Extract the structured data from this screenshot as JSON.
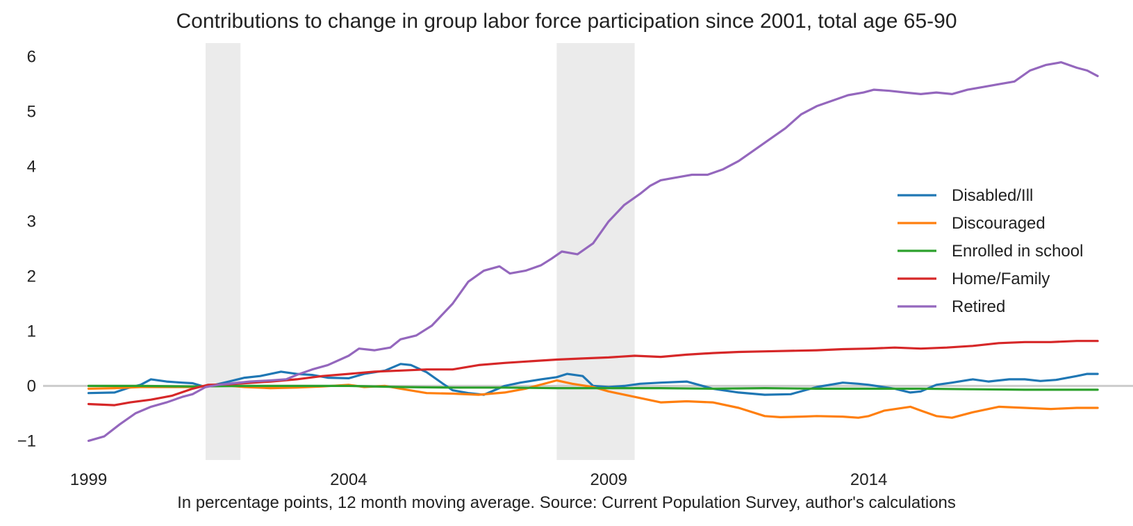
{
  "chart_data": {
    "type": "line",
    "title": "Contributions to change in group labor force participation since 2001, total age 65-90",
    "caption": "In percentage points, 12 month moving average. Source: Current Population Survey, author's calculations",
    "xlabel": "",
    "ylabel": "",
    "xlim": [
      1998.9,
      2018.8
    ],
    "ylim": [
      -1.35,
      6.25
    ],
    "x_ticks": [
      1999,
      2004,
      2009,
      2014
    ],
    "x_tick_labels": [
      "1999",
      "2004",
      "2009",
      "2014"
    ],
    "y_ticks": [
      -1,
      0,
      1,
      2,
      3,
      4,
      5,
      6
    ],
    "y_tick_labels": [
      "−1",
      "0",
      "1",
      "2",
      "3",
      "4",
      "5",
      "6"
    ],
    "grid": false,
    "zero_line": true,
    "legend_position": "center-right",
    "recessions": [
      {
        "start": 2001.25,
        "end": 2001.92
      },
      {
        "start": 2008.0,
        "end": 2009.5
      }
    ],
    "series": [
      {
        "name": "Disabled/Ill",
        "color": "#1f77b4",
        "points": [
          [
            1999.0,
            -0.13
          ],
          [
            1999.5,
            -0.12
          ],
          [
            1999.75,
            -0.04
          ],
          [
            2000.0,
            0.02
          ],
          [
            2000.2,
            0.12
          ],
          [
            2000.5,
            0.08
          ],
          [
            2000.8,
            0.06
          ],
          [
            2001.0,
            0.05
          ],
          [
            2001.25,
            -0.02
          ],
          [
            2001.7,
            0.08
          ],
          [
            2002.0,
            0.15
          ],
          [
            2002.3,
            0.18
          ],
          [
            2002.7,
            0.26
          ],
          [
            2003.0,
            0.22
          ],
          [
            2003.3,
            0.2
          ],
          [
            2003.6,
            0.15
          ],
          [
            2004.0,
            0.14
          ],
          [
            2004.3,
            0.22
          ],
          [
            2004.7,
            0.28
          ],
          [
            2005.0,
            0.4
          ],
          [
            2005.2,
            0.38
          ],
          [
            2005.5,
            0.25
          ],
          [
            2005.8,
            0.05
          ],
          [
            2006.0,
            -0.08
          ],
          [
            2006.3,
            -0.13
          ],
          [
            2006.6,
            -0.16
          ],
          [
            2007.0,
            0.0
          ],
          [
            2007.3,
            0.06
          ],
          [
            2007.7,
            0.12
          ],
          [
            2008.0,
            0.16
          ],
          [
            2008.2,
            0.22
          ],
          [
            2008.5,
            0.18
          ],
          [
            2008.7,
            0.0
          ],
          [
            2009.0,
            -0.02
          ],
          [
            2009.3,
            0.0
          ],
          [
            2009.6,
            0.04
          ],
          [
            2010.0,
            0.06
          ],
          [
            2010.5,
            0.08
          ],
          [
            2011.0,
            -0.05
          ],
          [
            2011.5,
            -0.12
          ],
          [
            2012.0,
            -0.16
          ],
          [
            2012.5,
            -0.15
          ],
          [
            2013.0,
            -0.02
          ],
          [
            2013.5,
            0.06
          ],
          [
            2013.8,
            0.04
          ],
          [
            2014.0,
            0.02
          ],
          [
            2014.5,
            -0.05
          ],
          [
            2014.8,
            -0.12
          ],
          [
            2015.0,
            -0.1
          ],
          [
            2015.3,
            0.02
          ],
          [
            2015.6,
            0.06
          ],
          [
            2016.0,
            0.12
          ],
          [
            2016.3,
            0.08
          ],
          [
            2016.7,
            0.12
          ],
          [
            2017.0,
            0.12
          ],
          [
            2017.3,
            0.09
          ],
          [
            2017.6,
            0.11
          ],
          [
            2018.0,
            0.18
          ],
          [
            2018.2,
            0.22
          ],
          [
            2018.4,
            0.22
          ]
        ]
      },
      {
        "name": "Discouraged",
        "color": "#ff7f0e",
        "points": [
          [
            1999.0,
            -0.05
          ],
          [
            1999.5,
            -0.04
          ],
          [
            2000.0,
            -0.02
          ],
          [
            2000.5,
            -0.02
          ],
          [
            2001.0,
            -0.02
          ],
          [
            2001.5,
            0.02
          ],
          [
            2002.0,
            -0.02
          ],
          [
            2002.5,
            -0.04
          ],
          [
            2003.0,
            -0.03
          ],
          [
            2003.5,
            -0.01
          ],
          [
            2004.0,
            0.02
          ],
          [
            2004.3,
            -0.02
          ],
          [
            2004.7,
            0.0
          ],
          [
            2005.0,
            -0.05
          ],
          [
            2005.5,
            -0.13
          ],
          [
            2006.0,
            -0.14
          ],
          [
            2006.5,
            -0.16
          ],
          [
            2007.0,
            -0.12
          ],
          [
            2007.4,
            -0.05
          ],
          [
            2007.8,
            0.05
          ],
          [
            2008.0,
            0.1
          ],
          [
            2008.3,
            0.04
          ],
          [
            2008.7,
            -0.02
          ],
          [
            2009.0,
            -0.1
          ],
          [
            2009.5,
            -0.2
          ],
          [
            2010.0,
            -0.3
          ],
          [
            2010.5,
            -0.28
          ],
          [
            2011.0,
            -0.3
          ],
          [
            2011.5,
            -0.4
          ],
          [
            2012.0,
            -0.55
          ],
          [
            2012.3,
            -0.57
          ],
          [
            2012.7,
            -0.56
          ],
          [
            2013.0,
            -0.55
          ],
          [
            2013.5,
            -0.56
          ],
          [
            2013.8,
            -0.58
          ],
          [
            2014.0,
            -0.55
          ],
          [
            2014.3,
            -0.45
          ],
          [
            2014.8,
            -0.38
          ],
          [
            2015.0,
            -0.45
          ],
          [
            2015.3,
            -0.55
          ],
          [
            2015.6,
            -0.58
          ],
          [
            2016.0,
            -0.48
          ],
          [
            2016.5,
            -0.38
          ],
          [
            2017.0,
            -0.4
          ],
          [
            2017.5,
            -0.42
          ],
          [
            2018.0,
            -0.4
          ],
          [
            2018.4,
            -0.4
          ]
        ]
      },
      {
        "name": "Enrolled in school",
        "color": "#2ca02c",
        "points": [
          [
            1999.0,
            0.0
          ],
          [
            2000.0,
            0.0
          ],
          [
            2001.0,
            -0.01
          ],
          [
            2002.0,
            0.0
          ],
          [
            2003.0,
            0.0
          ],
          [
            2004.0,
            0.0
          ],
          [
            2005.0,
            -0.02
          ],
          [
            2006.0,
            -0.03
          ],
          [
            2007.0,
            -0.03
          ],
          [
            2008.0,
            -0.04
          ],
          [
            2009.0,
            -0.04
          ],
          [
            2010.0,
            -0.04
          ],
          [
            2011.0,
            -0.05
          ],
          [
            2012.0,
            -0.04
          ],
          [
            2013.0,
            -0.05
          ],
          [
            2014.0,
            -0.05
          ],
          [
            2015.0,
            -0.05
          ],
          [
            2016.0,
            -0.06
          ],
          [
            2017.0,
            -0.07
          ],
          [
            2018.0,
            -0.07
          ],
          [
            2018.4,
            -0.07
          ]
        ]
      },
      {
        "name": "Home/Family",
        "color": "#d62728",
        "points": [
          [
            1999.0,
            -0.33
          ],
          [
            1999.5,
            -0.35
          ],
          [
            1999.8,
            -0.3
          ],
          [
            2000.2,
            -0.25
          ],
          [
            2000.6,
            -0.18
          ],
          [
            2001.0,
            -0.05
          ],
          [
            2001.3,
            0.02
          ],
          [
            2001.7,
            0.03
          ],
          [
            2002.0,
            0.05
          ],
          [
            2002.5,
            0.08
          ],
          [
            2003.0,
            0.12
          ],
          [
            2003.5,
            0.18
          ],
          [
            2004.0,
            0.22
          ],
          [
            2004.5,
            0.26
          ],
          [
            2005.0,
            0.28
          ],
          [
            2005.5,
            0.3
          ],
          [
            2006.0,
            0.3
          ],
          [
            2006.5,
            0.38
          ],
          [
            2007.0,
            0.42
          ],
          [
            2007.5,
            0.45
          ],
          [
            2008.0,
            0.48
          ],
          [
            2008.5,
            0.5
          ],
          [
            2009.0,
            0.52
          ],
          [
            2009.5,
            0.55
          ],
          [
            2010.0,
            0.53
          ],
          [
            2010.5,
            0.57
          ],
          [
            2011.0,
            0.6
          ],
          [
            2011.5,
            0.62
          ],
          [
            2012.0,
            0.63
          ],
          [
            2012.5,
            0.64
          ],
          [
            2013.0,
            0.65
          ],
          [
            2013.5,
            0.67
          ],
          [
            2014.0,
            0.68
          ],
          [
            2014.5,
            0.7
          ],
          [
            2015.0,
            0.68
          ],
          [
            2015.5,
            0.7
          ],
          [
            2016.0,
            0.73
          ],
          [
            2016.5,
            0.78
          ],
          [
            2017.0,
            0.8
          ],
          [
            2017.5,
            0.8
          ],
          [
            2018.0,
            0.82
          ],
          [
            2018.4,
            0.82
          ]
        ]
      },
      {
        "name": "Retired",
        "color": "#9467bd",
        "points": [
          [
            1999.0,
            -1.0
          ],
          [
            1999.3,
            -0.92
          ],
          [
            1999.6,
            -0.7
          ],
          [
            1999.9,
            -0.5
          ],
          [
            2000.2,
            -0.38
          ],
          [
            2000.5,
            -0.3
          ],
          [
            2000.8,
            -0.2
          ],
          [
            2001.0,
            -0.15
          ],
          [
            2001.25,
            -0.02
          ],
          [
            2001.5,
            0.02
          ],
          [
            2001.8,
            0.05
          ],
          [
            2002.1,
            0.08
          ],
          [
            2002.5,
            0.1
          ],
          [
            2002.8,
            0.12
          ],
          [
            2003.0,
            0.2
          ],
          [
            2003.3,
            0.3
          ],
          [
            2003.6,
            0.38
          ],
          [
            2004.0,
            0.55
          ],
          [
            2004.2,
            0.68
          ],
          [
            2004.5,
            0.65
          ],
          [
            2004.8,
            0.7
          ],
          [
            2005.0,
            0.85
          ],
          [
            2005.3,
            0.92
          ],
          [
            2005.6,
            1.1
          ],
          [
            2006.0,
            1.5
          ],
          [
            2006.3,
            1.9
          ],
          [
            2006.6,
            2.1
          ],
          [
            2006.9,
            2.18
          ],
          [
            2007.1,
            2.05
          ],
          [
            2007.4,
            2.1
          ],
          [
            2007.7,
            2.2
          ],
          [
            2007.9,
            2.32
          ],
          [
            2008.1,
            2.45
          ],
          [
            2008.4,
            2.4
          ],
          [
            2008.7,
            2.6
          ],
          [
            2009.0,
            3.0
          ],
          [
            2009.3,
            3.3
          ],
          [
            2009.6,
            3.5
          ],
          [
            2009.8,
            3.65
          ],
          [
            2010.0,
            3.75
          ],
          [
            2010.3,
            3.8
          ],
          [
            2010.6,
            3.85
          ],
          [
            2010.9,
            3.85
          ],
          [
            2011.2,
            3.95
          ],
          [
            2011.5,
            4.1
          ],
          [
            2011.8,
            4.3
          ],
          [
            2012.1,
            4.5
          ],
          [
            2012.4,
            4.7
          ],
          [
            2012.7,
            4.95
          ],
          [
            2013.0,
            5.1
          ],
          [
            2013.3,
            5.2
          ],
          [
            2013.6,
            5.3
          ],
          [
            2013.9,
            5.35
          ],
          [
            2014.1,
            5.4
          ],
          [
            2014.4,
            5.38
          ],
          [
            2014.7,
            5.35
          ],
          [
            2015.0,
            5.32
          ],
          [
            2015.3,
            5.35
          ],
          [
            2015.6,
            5.32
          ],
          [
            2015.9,
            5.4
          ],
          [
            2016.2,
            5.45
          ],
          [
            2016.5,
            5.5
          ],
          [
            2016.8,
            5.55
          ],
          [
            2017.1,
            5.75
          ],
          [
            2017.4,
            5.85
          ],
          [
            2017.7,
            5.9
          ],
          [
            2018.0,
            5.8
          ],
          [
            2018.2,
            5.75
          ],
          [
            2018.4,
            5.65
          ]
        ]
      }
    ]
  }
}
